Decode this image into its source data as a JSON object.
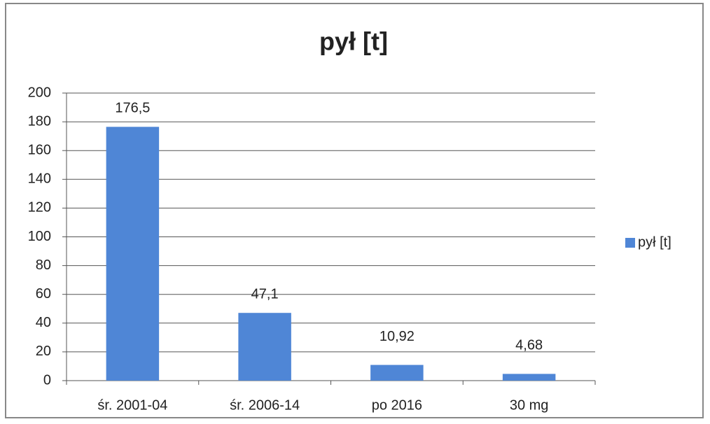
{
  "chart_data": {
    "type": "bar",
    "title": "pył [t]",
    "categories": [
      "śr. 2001-04",
      "śr. 2006-14",
      "po 2016",
      "30 mg"
    ],
    "series": [
      {
        "name": "pył [t]",
        "color": "#4f86d6",
        "values": [
          176.5,
          47.1,
          10.92,
          4.68
        ],
        "value_labels": [
          "176,5",
          "47,1",
          "10,92",
          "4,68"
        ]
      }
    ],
    "ylim": [
      0,
      200
    ],
    "yticks": [
      0,
      20,
      40,
      60,
      80,
      100,
      120,
      140,
      160,
      180,
      200
    ],
    "grid": true,
    "legend": "right"
  }
}
